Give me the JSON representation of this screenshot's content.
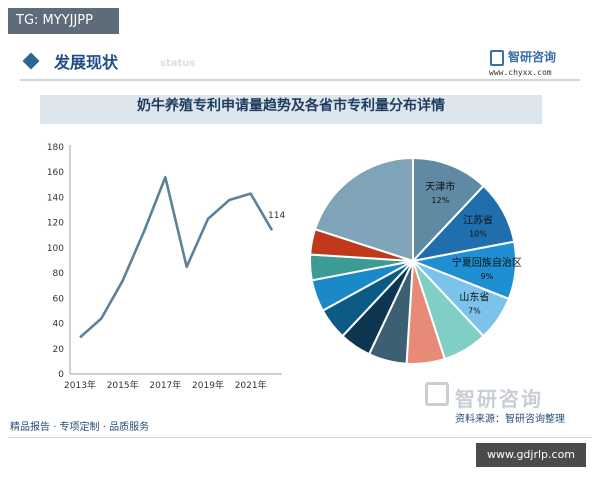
{
  "badge": {
    "text": "TG: MYYJJPP"
  },
  "header": {
    "title": "发展现状",
    "subtitle": "status",
    "logo_name": "智研咨询",
    "logo_url": "www.chyxx.com"
  },
  "chart_title": "奶牛养殖专利申请量趋势及各省市专利量分布详情",
  "chart_data": [
    {
      "type": "line",
      "title": "",
      "x": [
        2013,
        2014,
        2015,
        2016,
        2017,
        2018,
        2019,
        2020,
        2021,
        2022
      ],
      "series": [
        {
          "values": [
            29,
            44,
            74,
            113,
            156,
            85,
            123,
            138,
            143,
            114
          ],
          "color": "#5f8197"
        }
      ],
      "xticks": [
        "2013年",
        "2015年",
        "2017年",
        "2019年",
        "2021年"
      ],
      "yticks": [
        "0",
        "20",
        "40",
        "60",
        "80",
        "100",
        "120",
        "140",
        "160",
        "180"
      ],
      "ylim": [
        0,
        180
      ],
      "annotations": [
        {
          "x": 2022,
          "text": "114"
        }
      ],
      "grid": false
    },
    {
      "type": "pie",
      "slices": [
        {
          "label": "天津市",
          "pct_label": "12%",
          "value": 12,
          "color": "#5f8aa3"
        },
        {
          "label": "江苏省",
          "pct_label": "10%",
          "value": 10,
          "color": "#1f6fae"
        },
        {
          "label": "宁夏回族自治区",
          "pct_label": "9%",
          "value": 9,
          "color": "#1e8fd2"
        },
        {
          "label": "山东省",
          "pct_label": "7%",
          "value": 7,
          "color": "#7cc3ec"
        },
        {
          "label": "",
          "value": 7,
          "color": "#7fcfc7"
        },
        {
          "label": "",
          "value": 6,
          "color": "#e88a78"
        },
        {
          "label": "",
          "value": 6,
          "color": "#3c5f72"
        },
        {
          "label": "",
          "value": 5,
          "color": "#0c3652"
        },
        {
          "label": "",
          "value": 5,
          "color": "#0b5b84"
        },
        {
          "label": "",
          "value": 5,
          "color": "#1a89c7"
        },
        {
          "label": "",
          "value": 4,
          "color": "#3a9c95"
        },
        {
          "label": "",
          "value": 4,
          "color": "#c0391b"
        },
        {
          "label": "",
          "value": 20,
          "color": "#7fa4b8"
        }
      ]
    }
  ],
  "source": {
    "logo_text": "智研咨询",
    "note": "资料来源：智研咨询整理"
  },
  "footer": {
    "tagline": "精品报告 · 专项定制 · 品质服务",
    "link": "www.gdjrlp.com"
  }
}
